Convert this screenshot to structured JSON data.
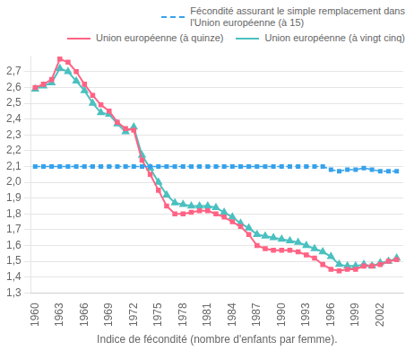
{
  "chart_data": {
    "type": "line",
    "xlabel": "Indice de fécondité (nombre d'enfants par femme).",
    "x": [
      1960,
      1961,
      1962,
      1963,
      1964,
      1965,
      1966,
      1967,
      1968,
      1969,
      1970,
      1971,
      1972,
      1973,
      1974,
      1975,
      1976,
      1977,
      1978,
      1979,
      1980,
      1981,
      1982,
      1983,
      1984,
      1985,
      1986,
      1987,
      1988,
      1989,
      1990,
      1991,
      1992,
      1993,
      1994,
      1995,
      1996,
      1997,
      1998,
      1999,
      2000,
      2001,
      2002,
      2003,
      2004
    ],
    "series": [
      {
        "name": "Fécondité assurant le simple remplacement dans\nl'Union européenne (à 15)",
        "marker": "square",
        "line_style": "dashed",
        "values": [
          2.1,
          2.1,
          2.1,
          2.1,
          2.1,
          2.1,
          2.1,
          2.1,
          2.1,
          2.1,
          2.1,
          2.1,
          2.1,
          2.1,
          2.1,
          2.1,
          2.1,
          2.1,
          2.1,
          2.1,
          2.1,
          2.1,
          2.1,
          2.1,
          2.1,
          2.1,
          2.1,
          2.1,
          2.1,
          2.1,
          2.1,
          2.1,
          2.1,
          2.1,
          2.1,
          2.1,
          2.08,
          2.07,
          2.08,
          2.08,
          2.09,
          2.08,
          2.07,
          2.07,
          2.07
        ]
      },
      {
        "name": "Union européenne (à quinze)",
        "marker": "square",
        "line_style": "solid",
        "values": [
          2.6,
          2.62,
          2.65,
          2.78,
          2.76,
          2.7,
          2.62,
          2.55,
          2.49,
          2.45,
          2.38,
          2.34,
          2.33,
          2.14,
          2.05,
          1.95,
          1.85,
          1.8,
          1.8,
          1.81,
          1.82,
          1.82,
          1.8,
          1.78,
          1.75,
          1.72,
          1.67,
          1.6,
          1.58,
          1.57,
          1.57,
          1.57,
          1.56,
          1.54,
          1.52,
          1.48,
          1.45,
          1.44,
          1.45,
          1.45,
          1.47,
          1.47,
          1.48,
          1.5,
          1.51
        ]
      },
      {
        "name": "Union européenne (à vingt cinq)",
        "marker": "triangle",
        "line_style": "solid",
        "values": [
          2.59,
          2.61,
          2.63,
          2.72,
          2.7,
          2.64,
          2.58,
          2.5,
          2.44,
          2.43,
          2.37,
          2.32,
          2.35,
          2.17,
          2.09,
          2.0,
          1.92,
          1.87,
          1.86,
          1.85,
          1.85,
          1.85,
          1.84,
          1.81,
          1.78,
          1.74,
          1.71,
          1.67,
          1.66,
          1.65,
          1.64,
          1.63,
          1.62,
          1.6,
          1.58,
          1.56,
          1.53,
          1.48,
          1.47,
          1.47,
          1.48,
          1.47,
          1.49,
          1.5,
          1.52
        ]
      }
    ],
    "xlim": [
      1959.5,
      2004.8
    ],
    "xticks": [
      1960,
      1963,
      1966,
      1969,
      1972,
      1975,
      1978,
      1981,
      1984,
      1987,
      1990,
      1993,
      1996,
      1999,
      2002
    ],
    "ylim": [
      1.3,
      2.8
    ],
    "yticks": [
      {
        "value": 1.3,
        "label": "1,3"
      },
      {
        "value": 1.4,
        "label": "1,4"
      },
      {
        "value": 1.5,
        "label": "1,5"
      },
      {
        "value": 1.6,
        "label": "1,6"
      },
      {
        "value": 1.7,
        "label": "1,7"
      },
      {
        "value": 1.8,
        "label": "1,8"
      },
      {
        "value": 1.9,
        "label": "1,9"
      },
      {
        "value": 2.0,
        "label": "2,0"
      },
      {
        "value": 2.1,
        "label": "2,1"
      },
      {
        "value": 2.2,
        "label": "2,2"
      },
      {
        "value": 2.3,
        "label": "2,3"
      },
      {
        "value": 2.4,
        "label": "2,4"
      },
      {
        "value": 2.5,
        "label": "2,5"
      },
      {
        "value": 2.6,
        "label": "2,6"
      },
      {
        "value": 2.7,
        "label": "2,7"
      }
    ],
    "grid": "y",
    "legend": "upper right"
  }
}
